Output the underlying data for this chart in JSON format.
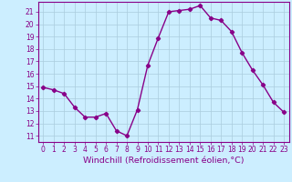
{
  "x": [
    0,
    1,
    2,
    3,
    4,
    5,
    6,
    7,
    8,
    9,
    10,
    11,
    12,
    13,
    14,
    15,
    16,
    17,
    18,
    19,
    20,
    21,
    22,
    23
  ],
  "y": [
    14.9,
    14.7,
    14.4,
    13.3,
    12.5,
    12.5,
    12.8,
    11.4,
    11.0,
    13.1,
    16.7,
    18.9,
    21.0,
    21.1,
    21.2,
    21.5,
    20.5,
    20.3,
    19.4,
    17.7,
    16.3,
    15.1,
    13.7,
    12.9
  ],
  "line_color": "#880088",
  "marker": "D",
  "markersize": 2.2,
  "linewidth": 1.0,
  "background_color": "#cceeff",
  "grid_color": "#aaccdd",
  "xlabel": "Windchill (Refroidissement éolien,°C)",
  "xlabel_color": "#880088",
  "tick_color": "#880088",
  "ylim": [
    10.5,
    21.8
  ],
  "xlim": [
    -0.5,
    23.5
  ],
  "yticks": [
    11,
    12,
    13,
    14,
    15,
    16,
    17,
    18,
    19,
    20,
    21
  ],
  "xticks": [
    0,
    1,
    2,
    3,
    4,
    5,
    6,
    7,
    8,
    9,
    10,
    11,
    12,
    13,
    14,
    15,
    16,
    17,
    18,
    19,
    20,
    21,
    22,
    23
  ],
  "tick_fontsize": 5.5,
  "xlabel_fontsize": 6.8
}
